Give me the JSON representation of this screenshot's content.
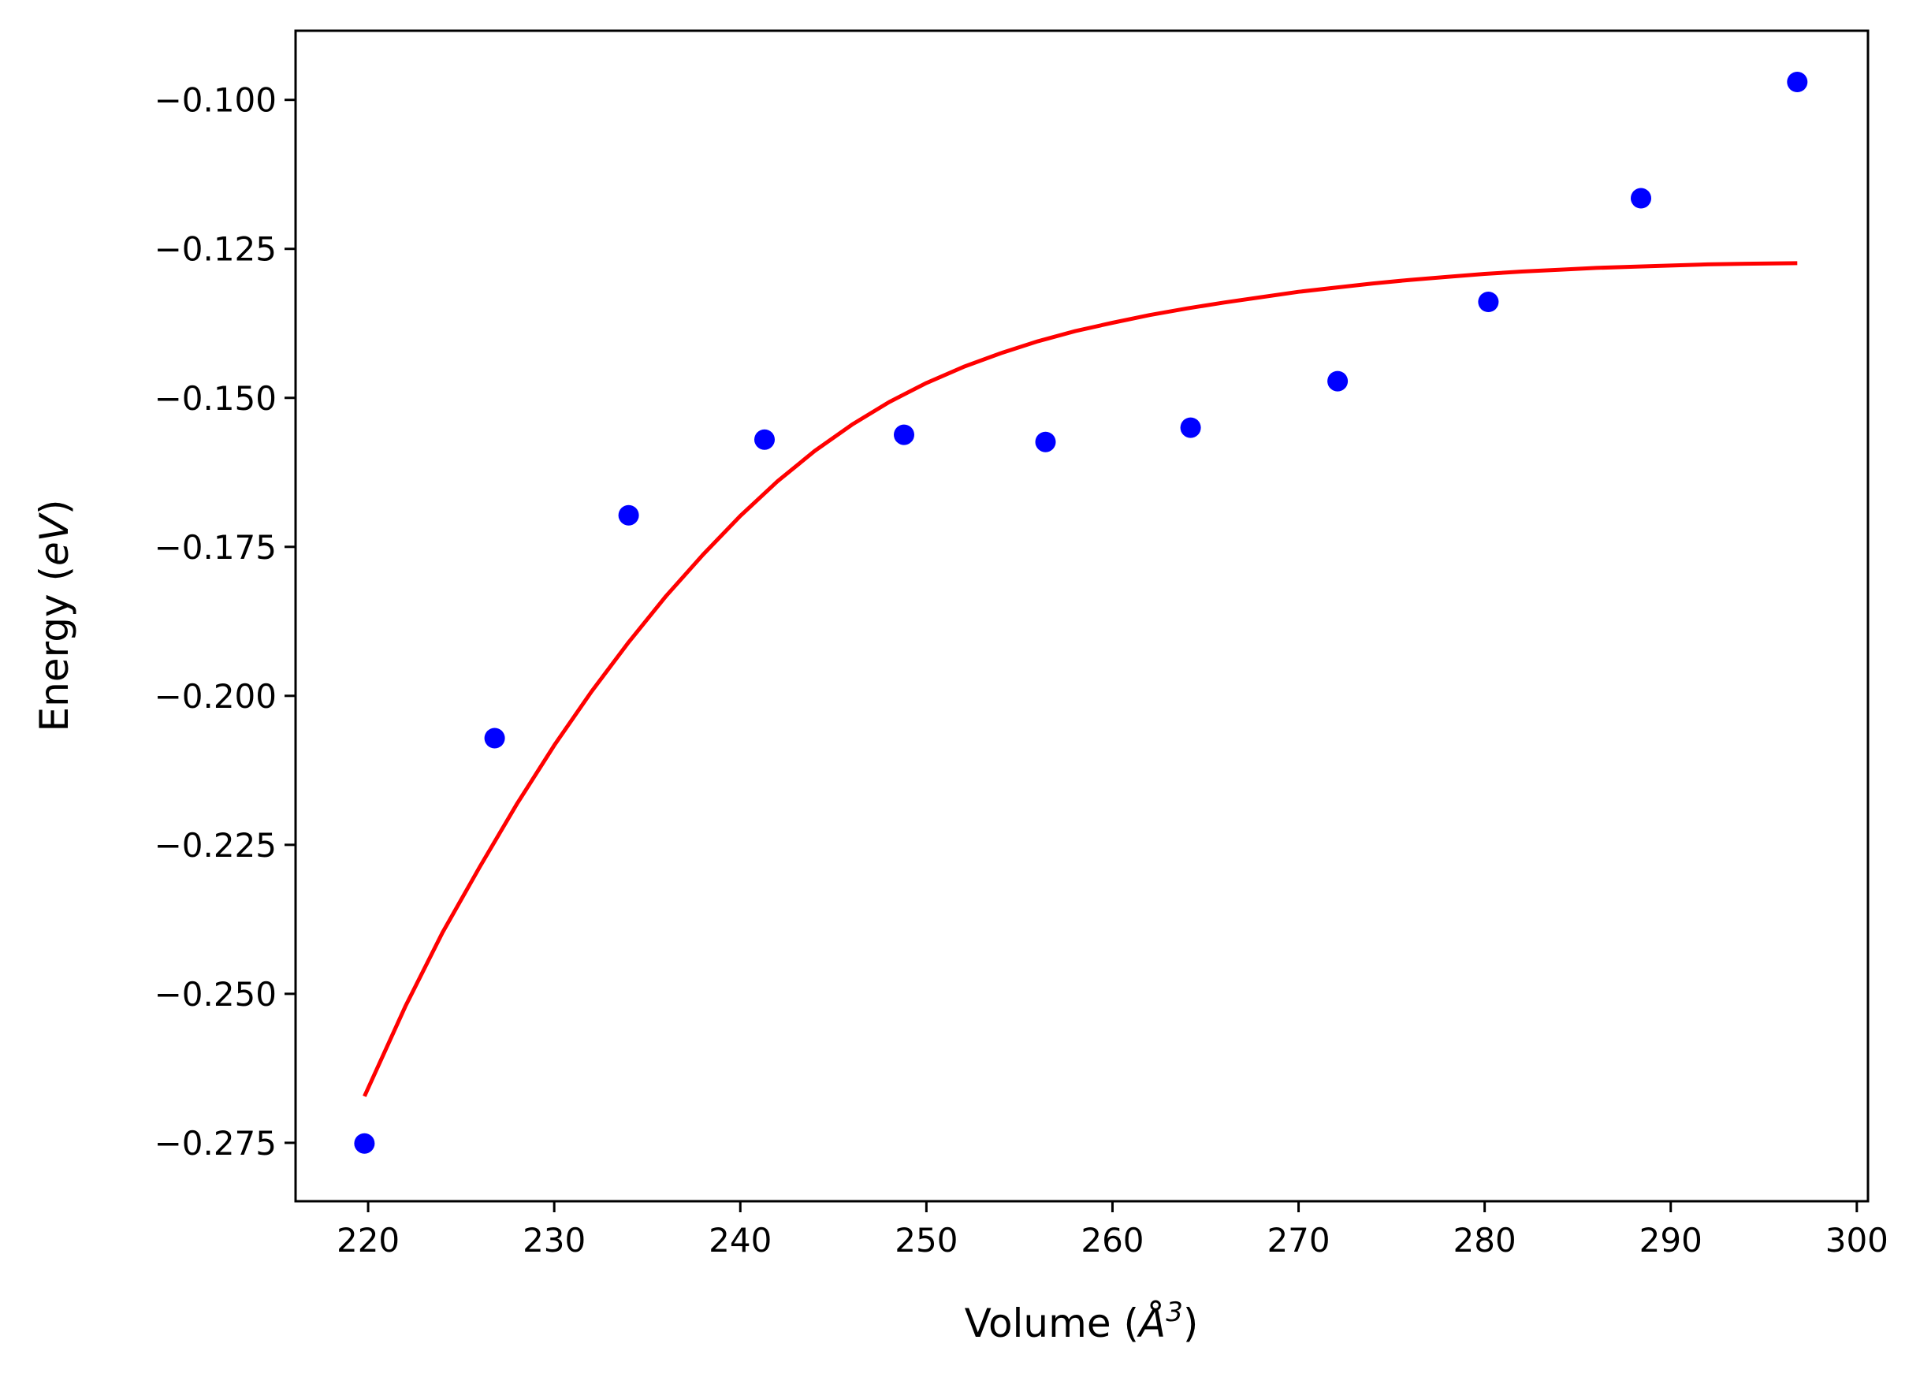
{
  "chart_data": {
    "type": "scatter",
    "title": "",
    "xlabel": "Volume (Å³)",
    "xlabel_parts": {
      "prefix": "Volume (",
      "symbol": "Å",
      "exponent": "3",
      "suffix": ")"
    },
    "ylabel": "Energy (eV)",
    "ylabel_parts": {
      "prefix": "Energy (",
      "unit": "eV",
      "suffix": ")"
    },
    "xlim": [
      216.1,
      300.6
    ],
    "ylim": [
      -0.2848,
      -0.0884
    ],
    "xticks": [
      220,
      230,
      240,
      250,
      260,
      270,
      280,
      290,
      300
    ],
    "xtick_labels": [
      "220",
      "230",
      "240",
      "250",
      "260",
      "270",
      "280",
      "290",
      "300"
    ],
    "yticks": [
      -0.275,
      -0.25,
      -0.225,
      -0.2,
      -0.175,
      -0.15,
      -0.125,
      -0.1
    ],
    "ytick_labels": [
      "−0.275",
      "−0.250",
      "−0.225",
      "−0.200",
      "−0.175",
      "−0.150",
      "−0.125",
      "−0.100"
    ],
    "grid": false,
    "legend": "none",
    "series": [
      {
        "kind": "points",
        "color": "#0000ff",
        "x": [
          219.8,
          226.8,
          234.0,
          241.3,
          248.8,
          256.4,
          264.2,
          272.1,
          280.2,
          288.4,
          296.8
        ],
        "y": [
          -0.2751,
          -0.2071,
          -0.1697,
          -0.157,
          -0.1562,
          -0.1574,
          -0.155,
          -0.1472,
          -0.1339,
          -0.1165,
          -0.097
        ]
      },
      {
        "kind": "line",
        "color": "#ff0000",
        "x": [
          219.8,
          222.0,
          224.0,
          226.0,
          228.0,
          230.0,
          232.0,
          234.0,
          236.0,
          238.0,
          240.0,
          242.0,
          244.0,
          246.0,
          248.0,
          250.0,
          252.0,
          254.0,
          256.0,
          258.0,
          260.0,
          262.0,
          264.0,
          266.0,
          268.0,
          270.0,
          272.0,
          274.0,
          276.0,
          278.0,
          280.0,
          282.0,
          284.0,
          286.0,
          288.0,
          290.0,
          292.0,
          294.0,
          296.8
        ],
        "y": [
          -0.2672,
          -0.2521,
          -0.2397,
          -0.2287,
          -0.2181,
          -0.2083,
          -0.1993,
          -0.191,
          -0.1833,
          -0.1763,
          -0.1698,
          -0.164,
          -0.1589,
          -0.1545,
          -0.1507,
          -0.1475,
          -0.1448,
          -0.1425,
          -0.1405,
          -0.1388,
          -0.1374,
          -0.1361,
          -0.135,
          -0.134,
          -0.1331,
          -0.1322,
          -0.1315,
          -0.1308,
          -0.1302,
          -0.1297,
          -0.1292,
          -0.1288,
          -0.1285,
          -0.1282,
          -0.128,
          -0.1278,
          -0.1276,
          -0.1275,
          -0.1274
        ]
      }
    ]
  }
}
